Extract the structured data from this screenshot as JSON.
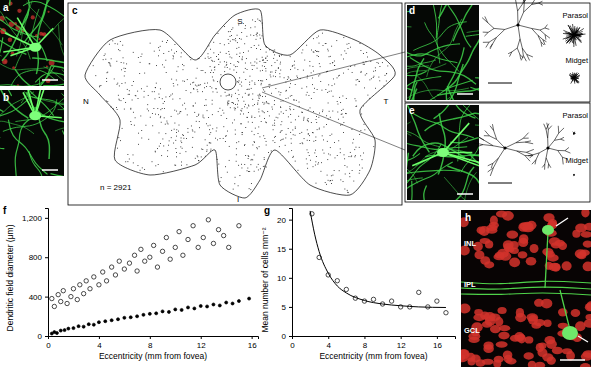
{
  "chart_data": [
    {
      "type": "scatter",
      "title": "f",
      "x_label": "Eccentricity (mm from fovea)",
      "y_label": "Dendritic field diameter (μm)",
      "xlim": [
        0,
        16.5
      ],
      "ylim": [
        0,
        1300
      ],
      "xticks": [
        0,
        4,
        8,
        12,
        16
      ],
      "yticks": [
        0,
        400,
        800,
        {
          "value": 1200,
          "label": "1,200"
        }
      ],
      "series": [
        {
          "marker": "open_circle",
          "color": "#000000",
          "x": [
            0.3,
            0.5,
            0.8,
            1.0,
            1.2,
            1.5,
            1.8,
            2.0,
            2.3,
            2.5,
            2.8,
            3.0,
            3.3,
            3.6,
            4.0,
            4.3,
            4.6,
            5.0,
            5.3,
            5.6,
            6.0,
            6.4,
            6.8,
            7.0,
            7.3,
            7.6,
            8.0,
            8.3,
            8.6,
            9.0,
            9.3,
            9.6,
            10.0,
            10.3,
            10.6,
            11.0,
            11.4,
            11.8,
            12.2,
            12.6,
            13.0,
            13.4,
            13.8,
            14.2,
            15.0
          ],
          "values": [
            380,
            300,
            420,
            350,
            460,
            330,
            400,
            480,
            370,
            520,
            430,
            560,
            480,
            600,
            520,
            650,
            560,
            700,
            620,
            760,
            680,
            740,
            820,
            660,
            880,
            760,
            800,
            920,
            700,
            860,
            1000,
            780,
            900,
            1060,
            820,
            980,
            1120,
            900,
            1000,
            1180,
            940,
            1080,
            1020,
            900,
            1120
          ]
        },
        {
          "marker": "circle",
          "color": "#000000",
          "x": [
            0.3,
            0.5,
            0.7,
            1.0,
            1.3,
            1.6,
            2.0,
            2.4,
            2.8,
            3.2,
            3.6,
            4.0,
            4.5,
            5.0,
            5.5,
            6.0,
            6.5,
            7.0,
            7.5,
            8.0,
            8.5,
            9.0,
            9.5,
            10.0,
            10.5,
            11.0,
            11.5,
            12.0,
            12.5,
            13.0,
            13.5,
            14.0,
            14.5,
            15.0,
            15.8
          ],
          "values": [
            25,
            40,
            30,
            55,
            60,
            75,
            80,
            100,
            95,
            120,
            115,
            140,
            150,
            160,
            170,
            185,
            190,
            200,
            215,
            225,
            230,
            250,
            245,
            270,
            265,
            290,
            280,
            305,
            300,
            320,
            310,
            340,
            330,
            355,
            380
          ]
        }
      ]
    },
    {
      "type": "scatter",
      "title": "g",
      "x_label": "Eccentricity (mm from fovea)",
      "y_label": "Mean number of cells mm⁻²",
      "xlim": [
        0,
        18
      ],
      "ylim": [
        0,
        22
      ],
      "xticks": [
        0,
        4,
        8,
        12,
        16
      ],
      "yticks": [
        0,
        5,
        10,
        15,
        20
      ],
      "series": [
        {
          "type": "scatter",
          "marker": "open_circle",
          "color": "#000000",
          "x": [
            2.2,
            3,
            4,
            5,
            6,
            7,
            8,
            9,
            10,
            11,
            12,
            13,
            14,
            15,
            16,
            17
          ],
          "values": [
            21,
            13.5,
            10.5,
            9.5,
            8,
            6.5,
            6,
            6.3,
            5.5,
            6,
            5,
            5,
            7.5,
            5,
            6,
            4
          ]
        },
        {
          "type": "line",
          "line_style": "solid",
          "color": "#000000",
          "x": [
            2,
            2.5,
            3,
            4,
            5,
            6,
            8,
            10,
            12,
            14,
            17
          ],
          "values": [
            21.5,
            17.5,
            14.5,
            10.8,
            8.6,
            7.4,
            6.1,
            5.5,
            5.2,
            5.0,
            4.9
          ]
        }
      ]
    }
  ],
  "panels": [
    {
      "label": "a"
    },
    {
      "label": "b"
    },
    {
      "label": "c",
      "compass": [
        "S",
        "N",
        "T",
        "I"
      ],
      "note": "n = 2921"
    },
    {
      "label": "d",
      "cell_types": [
        "Parasol",
        "Midget"
      ]
    },
    {
      "label": "e",
      "cell_types": [
        "Parasol",
        "Midget"
      ]
    },
    {
      "label": "h",
      "layers": [
        "INL",
        "IPL",
        "GCL"
      ]
    }
  ]
}
